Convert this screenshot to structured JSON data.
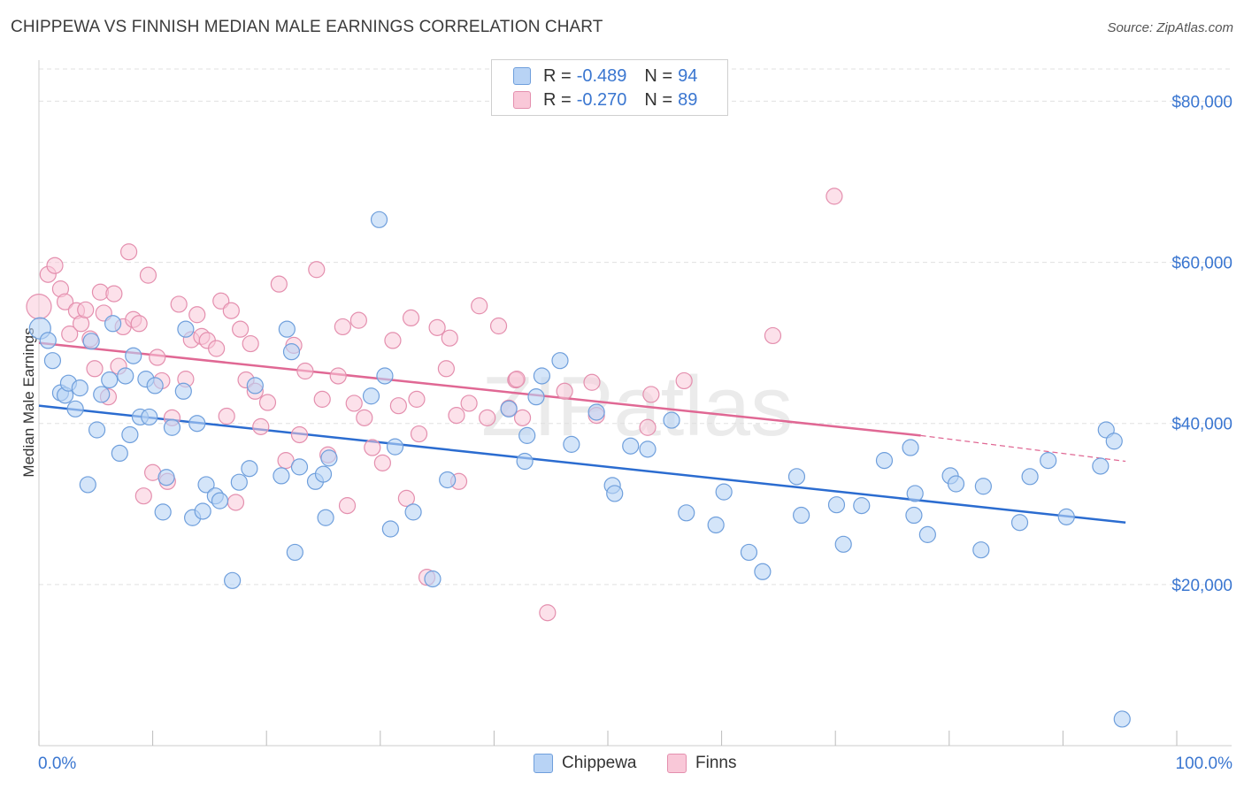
{
  "title": "CHIPPEWA VS FINNISH MEDIAN MALE EARNINGS CORRELATION CHART",
  "source": "Source: ZipAtlas.com",
  "watermark": "ZIPatlas",
  "colors": {
    "blue_fill": "#b8d3f5",
    "blue_stroke": "#6f9fdc",
    "blue_line": "#2b6cd0",
    "pink_fill": "#f9c8d8",
    "pink_stroke": "#e48fae",
    "pink_line": "#e06894",
    "axis_text": "#3a76d0",
    "grid": "#e0e0e0"
  },
  "legend": {
    "rows": [
      {
        "r_label": "R =",
        "r_value": "-0.489",
        "n_label": "N =",
        "n_value": "94"
      },
      {
        "r_label": "R =",
        "r_value": "-0.270",
        "n_label": "N =",
        "n_value": "89"
      }
    ]
  },
  "bottom_legend": {
    "series1": "Chippewa",
    "series2": "Finns"
  },
  "chart_data": {
    "type": "scatter",
    "title": "CHIPPEWA VS FINNISH MEDIAN MALE EARNINGS CORRELATION CHART",
    "xlabel": "",
    "ylabel": "Median Male Earnings",
    "xlim": [
      0,
      100
    ],
    "ylim": [
      0,
      84000
    ],
    "x_tick_labels": [
      "0.0%",
      "100.0%"
    ],
    "y_ticks": [
      20000,
      40000,
      60000,
      80000
    ],
    "y_tick_labels": [
      "$20,000",
      "$40,000",
      "$60,000",
      "$80,000"
    ],
    "legend_position": "top-center",
    "grid": true,
    "series": [
      {
        "name": "Chippewa",
        "r": -0.489,
        "n": 94,
        "trend": {
          "x": [
            0,
            95.5
          ],
          "y": [
            42200,
            27700
          ]
        },
        "points": [
          [
            0.1,
            51800
          ],
          [
            0.8,
            50300
          ],
          [
            1.2,
            47800
          ],
          [
            1.9,
            43800
          ],
          [
            2.3,
            43500
          ],
          [
            2.6,
            45000
          ],
          [
            3.2,
            41800
          ],
          [
            3.6,
            44400
          ],
          [
            4.3,
            32400
          ],
          [
            4.6,
            50200
          ],
          [
            5.1,
            39200
          ],
          [
            5.5,
            43600
          ],
          [
            6.2,
            45400
          ],
          [
            6.5,
            52400
          ],
          [
            7.1,
            36300
          ],
          [
            7.6,
            45900
          ],
          [
            8.0,
            38600
          ],
          [
            8.3,
            48400
          ],
          [
            8.9,
            40800
          ],
          [
            9.4,
            45500
          ],
          [
            9.7,
            40800
          ],
          [
            10.2,
            44700
          ],
          [
            10.9,
            29000
          ],
          [
            11.2,
            33300
          ],
          [
            11.7,
            39500
          ],
          [
            12.7,
            44000
          ],
          [
            12.9,
            51700
          ],
          [
            13.5,
            28300
          ],
          [
            13.9,
            40000
          ],
          [
            14.4,
            29100
          ],
          [
            14.7,
            32400
          ],
          [
            15.5,
            31000
          ],
          [
            15.9,
            30400
          ],
          [
            17.0,
            20500
          ],
          [
            17.6,
            32700
          ],
          [
            18.5,
            34400
          ],
          [
            19.0,
            44700
          ],
          [
            21.3,
            33500
          ],
          [
            21.8,
            51700
          ],
          [
            22.2,
            48900
          ],
          [
            22.5,
            24000
          ],
          [
            22.9,
            34600
          ],
          [
            24.3,
            32800
          ],
          [
            25.2,
            28300
          ],
          [
            25.0,
            33700
          ],
          [
            25.5,
            35700
          ],
          [
            29.2,
            43400
          ],
          [
            29.9,
            65300
          ],
          [
            30.4,
            45900
          ],
          [
            30.9,
            26900
          ],
          [
            31.3,
            37100
          ],
          [
            32.9,
            29000
          ],
          [
            34.6,
            20700
          ],
          [
            35.9,
            33000
          ],
          [
            41.3,
            41800
          ],
          [
            42.7,
            35300
          ],
          [
            42.9,
            38500
          ],
          [
            43.7,
            43300
          ],
          [
            44.2,
            45900
          ],
          [
            45.8,
            47800
          ],
          [
            46.8,
            37400
          ],
          [
            49.0,
            41400
          ],
          [
            50.4,
            32300
          ],
          [
            50.6,
            31300
          ],
          [
            52.0,
            37200
          ],
          [
            53.5,
            36800
          ],
          [
            55.6,
            40400
          ],
          [
            56.9,
            28900
          ],
          [
            59.5,
            27400
          ],
          [
            60.2,
            31500
          ],
          [
            62.4,
            24000
          ],
          [
            63.6,
            21600
          ],
          [
            66.6,
            33400
          ],
          [
            67.0,
            28600
          ],
          [
            70.1,
            29900
          ],
          [
            70.7,
            25000
          ],
          [
            72.3,
            29800
          ],
          [
            74.3,
            35400
          ],
          [
            76.6,
            37000
          ],
          [
            76.9,
            28600
          ],
          [
            77.0,
            31300
          ],
          [
            78.1,
            26200
          ],
          [
            80.1,
            33500
          ],
          [
            80.6,
            32500
          ],
          [
            82.8,
            24300
          ],
          [
            83.0,
            32200
          ],
          [
            86.2,
            27700
          ],
          [
            87.1,
            33400
          ],
          [
            88.7,
            35400
          ],
          [
            90.3,
            28400
          ],
          [
            93.3,
            34700
          ],
          [
            93.8,
            39200
          ],
          [
            94.5,
            37800
          ],
          [
            95.2,
            3300
          ]
        ]
      },
      {
        "name": "Finns",
        "r": -0.27,
        "n": 89,
        "trend": {
          "x": [
            0,
            77.5
          ],
          "y": [
            50000,
            38500
          ],
          "dashed_to": [
            95.5,
            35300
          ]
        },
        "points": [
          [
            0.0,
            54500
          ],
          [
            0.8,
            58500
          ],
          [
            1.4,
            59600
          ],
          [
            1.9,
            56700
          ],
          [
            2.3,
            55100
          ],
          [
            2.7,
            51100
          ],
          [
            3.3,
            54000
          ],
          [
            3.7,
            52400
          ],
          [
            4.1,
            54100
          ],
          [
            4.5,
            50500
          ],
          [
            4.9,
            46800
          ],
          [
            5.4,
            56300
          ],
          [
            5.7,
            53700
          ],
          [
            6.1,
            43300
          ],
          [
            6.6,
            56100
          ],
          [
            7.0,
            47100
          ],
          [
            7.4,
            52000
          ],
          [
            7.9,
            61300
          ],
          [
            8.3,
            52900
          ],
          [
            8.8,
            52400
          ],
          [
            9.2,
            31000
          ],
          [
            9.6,
            58400
          ],
          [
            10.0,
            33900
          ],
          [
            10.4,
            48200
          ],
          [
            10.8,
            45300
          ],
          [
            11.3,
            32800
          ],
          [
            11.7,
            40700
          ],
          [
            12.3,
            54800
          ],
          [
            12.9,
            45500
          ],
          [
            13.4,
            50400
          ],
          [
            13.9,
            53500
          ],
          [
            14.3,
            50800
          ],
          [
            14.8,
            50300
          ],
          [
            15.6,
            49300
          ],
          [
            16.0,
            55200
          ],
          [
            16.5,
            40900
          ],
          [
            16.9,
            54000
          ],
          [
            17.3,
            30200
          ],
          [
            17.7,
            51700
          ],
          [
            18.2,
            45400
          ],
          [
            18.6,
            49900
          ],
          [
            19.0,
            44000
          ],
          [
            19.5,
            39600
          ],
          [
            20.1,
            42600
          ],
          [
            21.1,
            57300
          ],
          [
            21.7,
            35400
          ],
          [
            22.4,
            49700
          ],
          [
            22.9,
            38600
          ],
          [
            23.4,
            46500
          ],
          [
            24.4,
            59100
          ],
          [
            24.9,
            43000
          ],
          [
            25.4,
            36100
          ],
          [
            26.3,
            45900
          ],
          [
            26.7,
            52000
          ],
          [
            27.1,
            29800
          ],
          [
            27.7,
            42500
          ],
          [
            28.1,
            52800
          ],
          [
            28.6,
            40700
          ],
          [
            29.3,
            37000
          ],
          [
            30.2,
            35100
          ],
          [
            31.1,
            50300
          ],
          [
            31.6,
            42200
          ],
          [
            32.3,
            30700
          ],
          [
            32.7,
            53100
          ],
          [
            33.2,
            43000
          ],
          [
            33.4,
            38700
          ],
          [
            34.1,
            20900
          ],
          [
            35.0,
            51900
          ],
          [
            35.8,
            46800
          ],
          [
            36.1,
            50600
          ],
          [
            36.7,
            41000
          ],
          [
            36.9,
            32800
          ],
          [
            37.8,
            42500
          ],
          [
            38.7,
            54600
          ],
          [
            39.4,
            40700
          ],
          [
            40.4,
            52100
          ],
          [
            41.3,
            41900
          ],
          [
            41.9,
            45400
          ],
          [
            42.5,
            40700
          ],
          [
            44.7,
            16500
          ],
          [
            46.2,
            44000
          ],
          [
            48.6,
            45100
          ],
          [
            49.0,
            41000
          ],
          [
            53.5,
            39500
          ],
          [
            53.8,
            43600
          ],
          [
            56.7,
            45300
          ],
          [
            64.5,
            50900
          ],
          [
            69.9,
            68200
          ],
          [
            42.0,
            45500
          ]
        ]
      }
    ]
  }
}
